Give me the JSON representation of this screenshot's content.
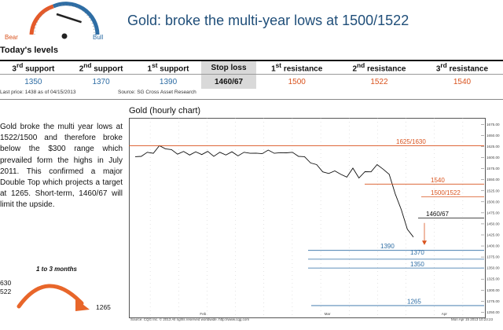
{
  "header": {
    "title": "Gold: broke the multi-year lows at 1500/1522",
    "gauge": {
      "left_label": "Bear",
      "right_label": "Bull",
      "needle_level": 0.78
    }
  },
  "levels": {
    "section_title": "Today's levels",
    "columns": [
      "3rd support",
      "2nd support",
      "1st support",
      "Stop loss",
      "1st resistance",
      "2nd resistance",
      "3rd resistance"
    ],
    "values": [
      "1350",
      "1370",
      "1390",
      "1460/67",
      "1500",
      "1522",
      "1540"
    ],
    "last_price": "Last price: 1438 as of 04/15/2013",
    "source": "Source: SG Cross Asset Research"
  },
  "commentary": {
    "text": "Gold broke the multi year lows at 1522/1500 and therefore broke below the $300 range which prevailed form the highs in July 2011. This confirmed a major Double Top which projects a target at 1265. Short-term, 1460/67 will limit the upside.",
    "horizon": "1 to 3 months",
    "targets": [
      "630",
      "522",
      "1265"
    ]
  },
  "chart_data": {
    "type": "line",
    "title": "Gold (hourly chart)",
    "y_axis_ticks": [
      "1675.00",
      "1650.00",
      "1625.00",
      "1600.00",
      "1575.00",
      "1550.00",
      "1525.00",
      "1500.00",
      "1475.00",
      "1450.00",
      "1425.00",
      "1400.00",
      "1375.00",
      "1350.00",
      "1325.00",
      "1300.00",
      "1275.00",
      "1250.00"
    ],
    "x_axis_ticks": [
      "Feb",
      "Mar",
      "Apr"
    ],
    "series": [
      {
        "values": [
          1600,
          1605,
          1610,
          1612,
          1625,
          1622,
          1616,
          1610,
          1612,
          1608,
          1611,
          1609,
          1612,
          1605,
          1610,
          1608,
          1611,
          1606,
          1610,
          1612,
          1608,
          1611,
          1615,
          1612,
          1609,
          1613,
          1610,
          1605,
          1600,
          1590,
          1582,
          1570,
          1562,
          1572,
          1560,
          1558,
          1574,
          1556,
          1566,
          1570,
          1582,
          1576,
          1560,
          1520,
          1480,
          1440,
          1418
        ]
      }
    ],
    "levels": [
      {
        "label": "1625/1630",
        "value": 1627
      },
      {
        "label": "1540",
        "value": 1540
      },
      {
        "label": "1500/1522",
        "value": 1511
      },
      {
        "label": "1460/67",
        "value": 1463
      },
      {
        "label": "1390",
        "value": 1390
      },
      {
        "label": "1370",
        "value": 1370
      },
      {
        "label": "1350",
        "value": 1350
      },
      {
        "label": "1265",
        "value": 1265
      }
    ],
    "ylim": [
      1240,
      1690
    ],
    "colors": {
      "line": "#111111",
      "resistance": "#d9531e",
      "support": "#2e6da4",
      "stop": "#111111",
      "projection": "#d9531e"
    }
  },
  "footer": {
    "source": "Source: CQG Inc. © 2013 All rights reserved worldwide. http://www.cqg.com",
    "date": "Mon Apr 15 2013 10:23:23"
  }
}
